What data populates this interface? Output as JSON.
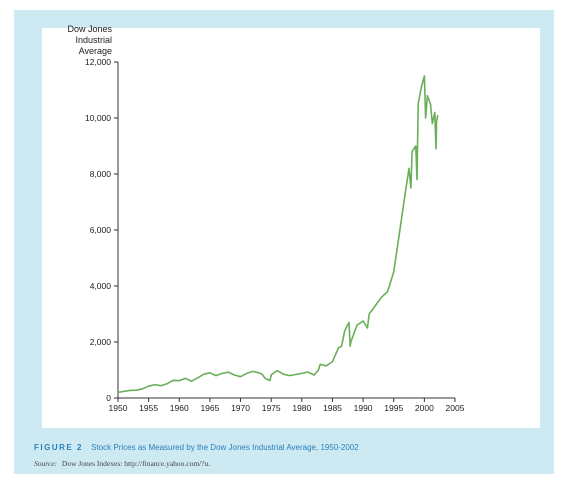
{
  "chart_data": {
    "type": "line",
    "title": "",
    "ylabel": "Dow Jones\nIndustrial Average",
    "ylabel_lines": [
      "Dow Jones",
      "Industrial Average"
    ],
    "xlabel": "",
    "xlim": [
      1950,
      2005
    ],
    "ylim": [
      0,
      12000
    ],
    "xticks": [
      1950,
      1955,
      1960,
      1965,
      1970,
      1975,
      1980,
      1985,
      1990,
      1995,
      2000,
      2005
    ],
    "yticks": [
      0,
      2000,
      4000,
      6000,
      8000,
      10000,
      12000
    ],
    "ytick_labels": [
      "0",
      "2,000",
      "4,000",
      "6,000",
      "8,000",
      "10,000",
      "12,000"
    ],
    "grid": false,
    "line_color": "#6aae5a",
    "series": [
      {
        "x": [
          1950,
          1951,
          1952,
          1953,
          1954,
          1955,
          1956,
          1957,
          1958,
          1959,
          1960,
          1961,
          1962,
          1963,
          1964,
          1965,
          1966,
          1967,
          1968,
          1969,
          1970,
          1971,
          1972,
          1973,
          1973.5,
          1974,
          1974.8,
          1975,
          1976,
          1977,
          1978,
          1979,
          1980,
          1981,
          1982,
          1982.7,
          1983,
          1984,
          1985,
          1986,
          1986.5,
          1987,
          1987.7,
          1987.9,
          1988,
          1989,
          1990,
          1990.7,
          1991,
          1992,
          1993,
          1994,
          1995,
          1996,
          1997,
          1997.5,
          1997.8,
          1998,
          1998.6,
          1998.8,
          1999,
          1999.5,
          2000,
          2000.2,
          2000.5,
          2001,
          2001.3,
          2001.7,
          2001.9,
          2002,
          2002.2
        ],
        "y": [
          200,
          240,
          270,
          280,
          330,
          420,
          480,
          440,
          510,
          630,
          620,
          700,
          600,
          720,
          850,
          900,
          800,
          880,
          920,
          820,
          760,
          880,
          950,
          900,
          850,
          700,
          620,
          830,
          980,
          850,
          800,
          840,
          880,
          930,
          820,
          1000,
          1200,
          1150,
          1300,
          1800,
          1850,
          2400,
          2700,
          1850,
          2000,
          2600,
          2750,
          2500,
          3000,
          3300,
          3600,
          3800,
          4500,
          6000,
          7500,
          8200,
          7500,
          8800,
          9000,
          7800,
          10500,
          11100,
          11500,
          10000,
          10800,
          10500,
          9800,
          10200,
          8900,
          9900,
          10100
        ]
      }
    ]
  },
  "caption": {
    "figure_label": "FIGURE 2",
    "text": "Stock Prices as Measured by the Dow Jones Industrial Average, 1950-2002"
  },
  "source": {
    "label": "Source:",
    "text": "Dow Jones Indexes: http://finance.yahoo.com/?u."
  }
}
